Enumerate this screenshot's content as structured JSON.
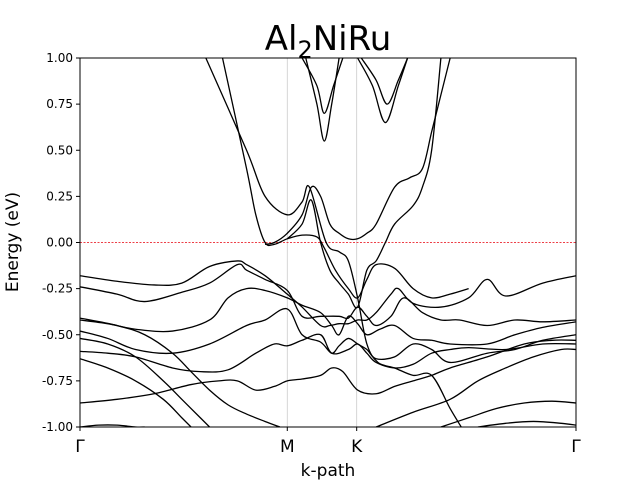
{
  "chart_data": {
    "type": "line",
    "title_main": "Al",
    "title_sub": "2",
    "title_rest": "NiRu",
    "xlabel": "k-path",
    "ylabel": "Energy (eV)",
    "ylim": [
      -1.0,
      1.0
    ],
    "xlim": [
      0,
      2.68
    ],
    "yticks": [
      "-1.00",
      "-0.75",
      "-0.50",
      "-0.25",
      "0.00",
      "0.25",
      "0.50",
      "0.75",
      "1.00"
    ],
    "high_symmetry_points": [
      {
        "label": "Γ",
        "x": 0.0
      },
      {
        "label": "M",
        "x": 1.12
      },
      {
        "label": "K",
        "x": 1.495
      },
      {
        "label": "Γ",
        "x": 2.68
      }
    ],
    "fermi_level": 0.0,
    "band_color": "#000000",
    "fermi_color": "#e8000b",
    "bands": [
      {
        "x": [
          0.68,
          0.9,
          1.0,
          1.12,
          1.2,
          1.24,
          1.33,
          1.4,
          1.45,
          1.5,
          1.55,
          1.61,
          1.7,
          1.8,
          1.9,
          2.0,
          2.06
        ],
        "y": [
          1.0,
          0.5,
          0.25,
          0.15,
          0.22,
          0.3,
          0.0,
          -0.05,
          -0.1,
          -0.3,
          -0.55,
          -0.65,
          -0.68,
          -0.72,
          -0.72,
          -0.9,
          -1.0
        ]
      },
      {
        "x": [
          0.77,
          0.9,
          0.95,
          1.0,
          1.05,
          1.12,
          1.2,
          1.28,
          1.32,
          1.38,
          1.45,
          1.5,
          1.55,
          1.6,
          1.7,
          1.8,
          1.9,
          2.0,
          2.1
        ],
        "y": [
          1.0,
          0.4,
          0.15,
          0.0,
          -0.01,
          0.02,
          0.04,
          0.03,
          -0.03,
          -0.15,
          -0.25,
          -0.3,
          -0.2,
          -0.12,
          -0.14,
          -0.25,
          -0.3,
          -0.28,
          -0.25
        ]
      },
      {
        "x": [
          1.0,
          1.05,
          1.12,
          1.2,
          1.25,
          1.3,
          1.35,
          1.4,
          1.45,
          1.5,
          1.55,
          1.6,
          1.7,
          1.78,
          1.85,
          1.9,
          1.95,
          2.0
        ],
        "y": [
          -0.01,
          0.0,
          0.05,
          0.15,
          0.3,
          0.25,
          0.1,
          0.05,
          0.02,
          0.02,
          0.05,
          0.1,
          0.3,
          0.35,
          0.4,
          0.6,
          0.8,
          1.0
        ]
      },
      {
        "x": [
          1.12,
          1.2,
          1.25,
          1.3,
          1.35,
          1.4,
          1.45,
          1.5,
          1.55,
          1.6,
          1.65,
          1.7,
          1.8,
          1.85,
          1.9,
          1.95
        ],
        "y": [
          0.02,
          0.1,
          0.23,
          0.0,
          -0.15,
          -0.22,
          -0.28,
          -0.35,
          -0.15,
          -0.1,
          0.0,
          0.1,
          0.2,
          0.3,
          0.5,
          1.0
        ]
      },
      {
        "x": [
          1.22,
          1.28,
          1.32,
          1.36,
          1.4
        ],
        "y": [
          1.0,
          0.75,
          0.55,
          0.75,
          1.0
        ]
      },
      {
        "x": [
          1.2,
          1.28,
          1.32,
          1.37,
          1.42
        ],
        "y": [
          1.0,
          0.85,
          0.7,
          0.85,
          1.0
        ]
      },
      {
        "x": [
          1.5,
          1.58,
          1.65,
          1.72,
          1.77
        ],
        "y": [
          1.0,
          0.85,
          0.65,
          0.85,
          1.0
        ]
      },
      {
        "x": [
          1.52,
          1.6,
          1.66,
          1.72,
          1.77
        ],
        "y": [
          1.0,
          0.88,
          0.75,
          0.88,
          1.0
        ]
      },
      {
        "x": [
          0.0,
          0.2,
          0.4,
          0.55,
          0.7,
          0.85,
          0.9,
          1.0,
          1.12,
          1.2,
          1.3,
          1.35,
          1.4,
          1.45,
          1.5,
          1.55,
          1.6,
          1.68,
          1.72,
          1.8,
          1.95,
          2.1,
          2.2,
          2.3,
          2.5,
          2.68
        ],
        "y": [
          -0.18,
          -0.21,
          -0.23,
          -0.22,
          -0.13,
          -0.1,
          -0.12,
          -0.18,
          -0.28,
          -0.35,
          -0.45,
          -0.45,
          -0.44,
          -0.44,
          -0.42,
          -0.42,
          -0.38,
          -0.28,
          -0.25,
          -0.33,
          -0.35,
          -0.3,
          -0.2,
          -0.29,
          -0.22,
          -0.18
        ]
      },
      {
        "x": [
          0.0,
          0.2,
          0.35,
          0.55,
          0.7,
          0.85,
          0.9,
          1.0,
          1.12,
          1.2,
          1.3,
          1.4,
          1.45,
          1.5,
          1.55,
          1.6,
          1.68,
          1.75,
          1.85,
          1.95,
          2.05,
          2.2,
          2.35,
          2.5,
          2.68
        ],
        "y": [
          -0.24,
          -0.28,
          -0.32,
          -0.27,
          -0.22,
          -0.12,
          -0.15,
          -0.2,
          -0.26,
          -0.4,
          -0.4,
          -0.4,
          -0.41,
          -0.35,
          -0.4,
          -0.45,
          -0.4,
          -0.3,
          -0.38,
          -0.42,
          -0.42,
          -0.45,
          -0.42,
          -0.43,
          -0.42
        ]
      },
      {
        "x": [
          0.0,
          0.15,
          0.3,
          0.5,
          0.7,
          0.8,
          0.9,
          1.0,
          1.12,
          1.2,
          1.3,
          1.36,
          1.4,
          1.45,
          1.5,
          1.55,
          1.62,
          1.7,
          1.8,
          1.9,
          2.0,
          2.2,
          2.35,
          2.5,
          2.68
        ],
        "y": [
          -0.42,
          -0.44,
          -0.47,
          -0.48,
          -0.42,
          -0.3,
          -0.25,
          -0.26,
          -0.3,
          -0.34,
          -0.38,
          -0.45,
          -0.5,
          -0.4,
          -0.44,
          -0.5,
          -0.47,
          -0.45,
          -0.52,
          -0.53,
          -0.55,
          -0.55,
          -0.5,
          -0.46,
          -0.43
        ]
      },
      {
        "x": [
          0.0,
          0.15,
          0.3,
          0.5,
          0.7,
          0.9,
          1.0,
          1.12,
          1.2,
          1.3,
          1.36,
          1.4,
          1.45,
          1.5,
          1.55,
          1.6,
          1.7,
          1.8,
          1.9,
          2.0,
          2.2,
          2.35,
          2.5,
          2.68
        ],
        "y": [
          -0.48,
          -0.52,
          -0.58,
          -0.6,
          -0.55,
          -0.45,
          -0.42,
          -0.36,
          -0.5,
          -0.54,
          -0.6,
          -0.56,
          -0.52,
          -0.55,
          -0.58,
          -0.63,
          -0.62,
          -0.55,
          -0.58,
          -0.65,
          -0.6,
          -0.58,
          -0.53,
          -0.5
        ]
      },
      {
        "x": [
          0.0,
          0.15,
          0.3,
          0.5,
          0.65,
          0.8,
          0.95,
          1.05,
          1.12,
          1.2,
          1.3,
          1.36,
          1.45,
          1.5,
          1.55,
          1.6,
          1.7,
          1.8,
          1.9,
          2.0,
          2.1,
          2.3,
          2.5,
          2.68
        ],
        "y": [
          -0.59,
          -0.6,
          -0.62,
          -0.68,
          -0.7,
          -0.69,
          -0.6,
          -0.55,
          -0.56,
          -0.53,
          -0.5,
          -0.6,
          -0.58,
          -0.55,
          -0.6,
          -0.65,
          -0.68,
          -0.66,
          -0.6,
          -0.58,
          -0.57,
          -0.58,
          -0.55,
          -0.55
        ]
      },
      {
        "x": [
          0.0,
          0.2,
          0.4,
          0.6,
          0.75,
          0.85,
          0.95,
          1.05,
          1.12,
          1.2,
          1.3,
          1.36,
          1.42,
          1.5,
          1.6,
          1.7,
          1.8,
          1.9,
          2.0,
          2.2,
          2.4,
          2.55,
          2.68
        ],
        "y": [
          -0.87,
          -0.85,
          -0.82,
          -0.77,
          -0.75,
          -0.75,
          -0.8,
          -0.78,
          -0.75,
          -0.74,
          -0.72,
          -0.68,
          -0.7,
          -0.8,
          -0.82,
          -0.78,
          -0.75,
          -0.72,
          -0.68,
          -0.62,
          -0.55,
          -0.53,
          -0.53
        ]
      },
      {
        "x": [
          0.0,
          0.2,
          0.35,
          0.5,
          0.6,
          0.7,
          0.8,
          0.9,
          1.0,
          1.08
        ],
        "y": [
          -0.41,
          -0.45,
          -0.5,
          -0.6,
          -0.7,
          -0.8,
          -0.88,
          -0.93,
          -0.97,
          -1.0
        ]
      },
      {
        "x": [
          0.0,
          0.15,
          0.3,
          0.45,
          0.55,
          0.65,
          0.7
        ],
        "y": [
          -0.52,
          -0.55,
          -0.62,
          -0.75,
          -0.85,
          -0.95,
          -1.0
        ]
      },
      {
        "x": [
          0.0,
          0.15,
          0.3,
          0.45,
          0.55,
          0.6
        ],
        "y": [
          -0.63,
          -0.68,
          -0.75,
          -0.85,
          -0.95,
          -1.0
        ]
      },
      {
        "x": [
          1.6,
          1.8,
          2.0,
          2.15,
          2.3,
          2.45,
          2.6,
          2.68
        ],
        "y": [
          -1.0,
          -0.92,
          -0.85,
          -0.75,
          -0.68,
          -0.62,
          -0.58,
          -0.58
        ]
      },
      {
        "x": [
          1.95,
          2.1,
          2.25,
          2.4,
          2.55,
          2.68
        ],
        "y": [
          -1.0,
          -0.95,
          -0.9,
          -0.87,
          -0.86,
          -0.87
        ]
      },
      {
        "x": [
          2.15,
          2.3,
          2.45,
          2.6,
          2.68
        ],
        "y": [
          -1.0,
          -0.98,
          -0.97,
          -0.98,
          -0.99
        ]
      },
      {
        "x": [
          0.0,
          0.1,
          0.2,
          0.3,
          0.35
        ],
        "y": [
          -1.0,
          -0.99,
          -0.99,
          -1.0,
          -1.0
        ]
      }
    ]
  }
}
